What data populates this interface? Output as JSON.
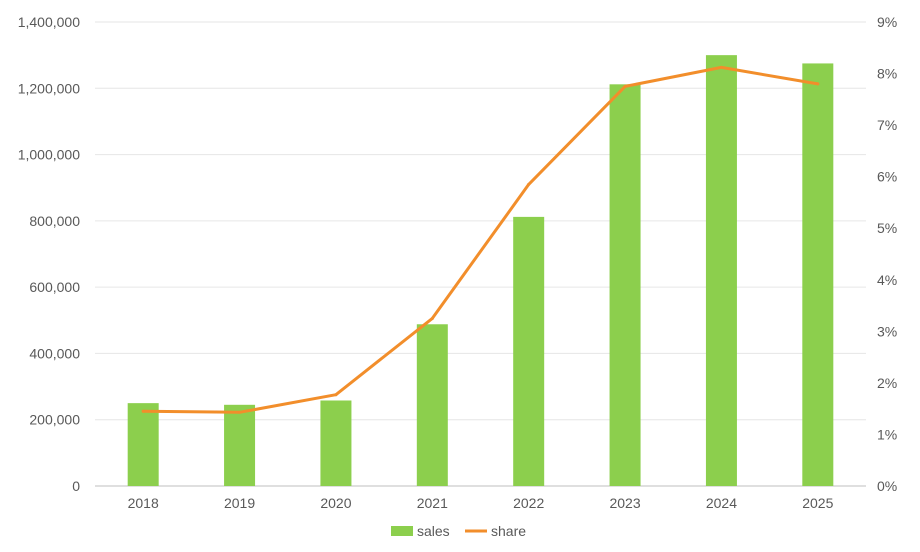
{
  "chart_data": {
    "type": "bar",
    "categories": [
      "2018",
      "2019",
      "2020",
      "2021",
      "2022",
      "2023",
      "2024",
      "2025"
    ],
    "series": [
      {
        "name": "sales",
        "type": "bar",
        "axis": "left",
        "values": [
          250000,
          245000,
          258000,
          488000,
          812000,
          1212000,
          1300000,
          1275000
        ]
      },
      {
        "name": "share",
        "type": "line",
        "axis": "right",
        "values": [
          1.45,
          1.43,
          1.77,
          3.25,
          5.85,
          7.75,
          8.12,
          7.8
        ]
      }
    ],
    "y_left": {
      "lim": [
        0,
        1400000
      ],
      "ticks": [
        "0",
        "200,000",
        "400,000",
        "600,000",
        "800,000",
        "1,000,000",
        "1,200,000",
        "1,400,000"
      ]
    },
    "y_right": {
      "lim": [
        0,
        9
      ],
      "ticks": [
        "0%",
        "1%",
        "2%",
        "3%",
        "4%",
        "5%",
        "6%",
        "7%",
        "8%",
        "9%"
      ]
    },
    "title": "",
    "xlabel": "",
    "ylabel": "",
    "grid": true,
    "legend_position": "bottom-center",
    "colors": {
      "bar": "#8ccf4d",
      "line": "#f28e2b",
      "grid": "#e6e6e6",
      "axis": "#bfbfbf",
      "text": "#595959"
    }
  }
}
